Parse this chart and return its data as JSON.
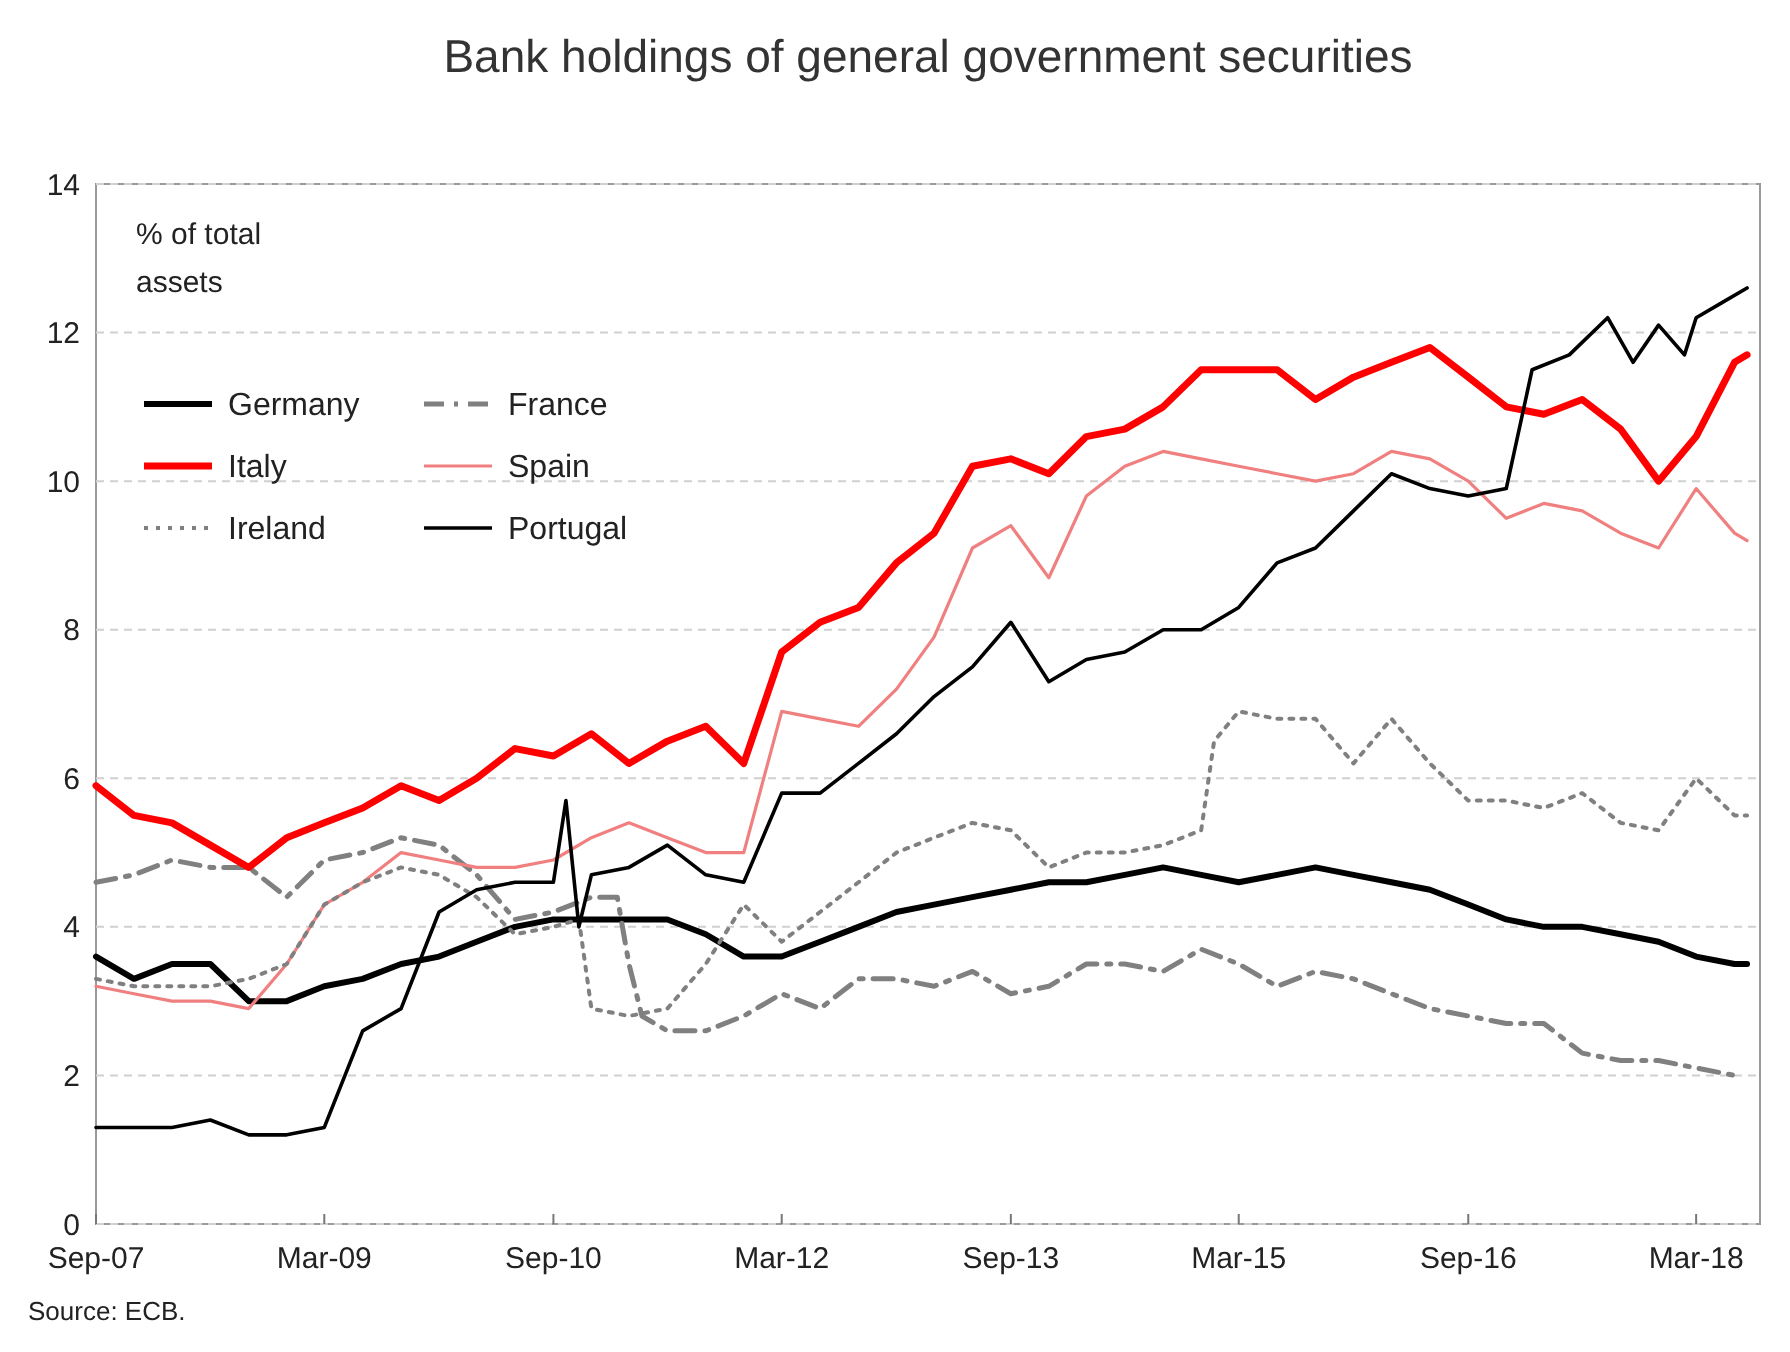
{
  "chart_data": {
    "type": "line",
    "title": "Bank holdings of general government securities",
    "ylabel": "% of total assets",
    "annotations": [
      "Source: ECB."
    ],
    "x": [
      "2007-09",
      "2007-12",
      "2008-03",
      "2008-06",
      "2008-09",
      "2008-12",
      "2009-03",
      "2009-06",
      "2009-09",
      "2009-12",
      "2010-03",
      "2010-06",
      "2010-09",
      "2010-12",
      "2011-03",
      "2011-06",
      "2011-09",
      "2011-12",
      "2012-03",
      "2012-06",
      "2012-09",
      "2012-12",
      "2013-03",
      "2013-06",
      "2013-09",
      "2013-12",
      "2014-03",
      "2014-06",
      "2014-09",
      "2014-12",
      "2015-03",
      "2015-06",
      "2015-09",
      "2015-12",
      "2016-03",
      "2016-06",
      "2016-09",
      "2016-12",
      "2017-03",
      "2017-06",
      "2017-09",
      "2017-12",
      "2018-03",
      "2018-06",
      "2018-07"
    ],
    "xlim": [
      "2007-09",
      "2018-08"
    ],
    "xticks": [
      {
        "value": "2007-09",
        "label": "Sep-07"
      },
      {
        "value": "2009-03",
        "label": "Mar-09"
      },
      {
        "value": "2010-09",
        "label": "Sep-10"
      },
      {
        "value": "2012-03",
        "label": "Mar-12"
      },
      {
        "value": "2013-09",
        "label": "Sep-13"
      },
      {
        "value": "2015-03",
        "label": "Mar-15"
      },
      {
        "value": "2016-09",
        "label": "Sep-16"
      },
      {
        "value": "2018-03",
        "label": "Mar-18"
      }
    ],
    "ylim": [
      0,
      14
    ],
    "yticks": [
      0,
      2,
      4,
      6,
      8,
      10,
      12,
      14
    ],
    "grid": "y",
    "legend": "top left",
    "series": [
      {
        "name": "Germany",
        "color": "#000000",
        "line_style": "solid",
        "values": [
          3.6,
          3.3,
          3.5,
          3.5,
          3.0,
          3.0,
          3.2,
          3.3,
          3.5,
          3.6,
          3.8,
          4.0,
          4.1,
          4.1,
          4.1,
          4.1,
          3.9,
          3.6,
          3.6,
          3.8,
          4.0,
          4.2,
          4.3,
          4.4,
          4.5,
          4.6,
          4.6,
          4.7,
          4.8,
          4.7,
          4.6,
          4.7,
          4.8,
          4.7,
          4.6,
          4.5,
          4.3,
          4.1,
          4.0,
          4.0,
          3.9,
          3.8,
          3.6,
          3.5,
          3.5
        ]
      },
      {
        "name": "France",
        "color": "#808080",
        "line_style": "dashed",
        "x": [
          "2007-09",
          "2007-12",
          "2008-03",
          "2008-06",
          "2008-09",
          "2008-12",
          "2009-03",
          "2009-06",
          "2009-09",
          "2009-12",
          "2010-03",
          "2010-06",
          "2010-09",
          "2010-12",
          "2011-02",
          "2011-03",
          "2011-04",
          "2011-06",
          "2011-09",
          "2011-12",
          "2012-03",
          "2012-06",
          "2012-09",
          "2012-12",
          "2013-03",
          "2013-06",
          "2013-09",
          "2013-12",
          "2014-03",
          "2014-06",
          "2014-09",
          "2014-12",
          "2015-03",
          "2015-06",
          "2015-09",
          "2015-12",
          "2016-03",
          "2016-06",
          "2016-09",
          "2016-12",
          "2017-03",
          "2017-06",
          "2017-09",
          "2017-12",
          "2018-03",
          "2018-06"
        ],
        "values": [
          4.6,
          4.7,
          4.9,
          4.8,
          4.8,
          4.4,
          4.9,
          5.0,
          5.2,
          5.1,
          4.7,
          4.1,
          4.2,
          4.4,
          4.4,
          3.5,
          2.8,
          2.6,
          2.6,
          2.8,
          3.1,
          2.9,
          3.3,
          3.3,
          3.2,
          3.4,
          3.1,
          3.2,
          3.5,
          3.5,
          3.4,
          3.7,
          3.5,
          3.2,
          3.4,
          3.3,
          3.1,
          2.9,
          2.8,
          2.7,
          2.7,
          2.3,
          2.2,
          2.2,
          2.1,
          2.0
        ]
      },
      {
        "name": "Italy",
        "color": "#ff0000",
        "line_style": "solid",
        "values": [
          5.9,
          5.5,
          5.4,
          5.1,
          4.8,
          5.2,
          5.4,
          5.6,
          5.9,
          5.7,
          6.0,
          6.4,
          6.3,
          6.6,
          6.2,
          6.5,
          6.7,
          6.2,
          7.7,
          8.1,
          8.3,
          8.9,
          9.3,
          10.2,
          10.3,
          10.1,
          10.6,
          10.7,
          11.0,
          11.5,
          11.5,
          11.5,
          11.1,
          11.4,
          11.6,
          11.8,
          11.4,
          11.0,
          10.9,
          11.1,
          10.7,
          10.0,
          10.6,
          11.6,
          11.7
        ]
      },
      {
        "name": "Spain",
        "color": "#f08080",
        "line_style": "solid",
        "values": [
          3.2,
          3.1,
          3.0,
          3.0,
          2.9,
          3.5,
          4.3,
          4.6,
          5.0,
          4.9,
          4.8,
          4.8,
          4.9,
          5.2,
          5.4,
          5.2,
          5.0,
          5.0,
          6.9,
          6.8,
          6.7,
          7.2,
          7.9,
          9.1,
          9.4,
          8.7,
          9.8,
          10.2,
          10.4,
          10.3,
          10.2,
          10.1,
          10.0,
          10.1,
          10.4,
          10.3,
          10.0,
          9.5,
          9.7,
          9.6,
          9.3,
          9.1,
          9.9,
          9.3,
          9.2
        ]
      },
      {
        "name": "Ireland",
        "color": "#808080",
        "line_style": "dotted",
        "x": [
          "2007-09",
          "2007-12",
          "2008-03",
          "2008-06",
          "2008-09",
          "2008-12",
          "2009-03",
          "2009-06",
          "2009-09",
          "2009-12",
          "2010-03",
          "2010-06",
          "2010-09",
          "2010-11",
          "2010-12",
          "2011-03",
          "2011-06",
          "2011-09",
          "2011-12",
          "2012-03",
          "2012-06",
          "2012-09",
          "2012-12",
          "2013-03",
          "2013-06",
          "2013-09",
          "2013-12",
          "2014-03",
          "2014-06",
          "2014-09",
          "2014-12",
          "2015-01",
          "2015-03",
          "2015-06",
          "2015-09",
          "2015-12",
          "2016-03",
          "2016-06",
          "2016-09",
          "2016-12",
          "2017-03",
          "2017-06",
          "2017-09",
          "2017-12",
          "2018-03",
          "2018-06",
          "2018-07"
        ],
        "values": [
          3.3,
          3.2,
          3.2,
          3.2,
          3.3,
          3.5,
          4.3,
          4.6,
          4.8,
          4.7,
          4.4,
          3.9,
          4.0,
          4.1,
          2.9,
          2.8,
          2.9,
          3.5,
          4.3,
          3.8,
          4.2,
          4.6,
          5.0,
          5.2,
          5.4,
          5.3,
          4.8,
          5.0,
          5.0,
          5.1,
          5.3,
          6.5,
          6.9,
          6.8,
          6.8,
          6.2,
          6.8,
          6.2,
          5.7,
          5.7,
          5.6,
          5.8,
          5.4,
          5.3,
          6.0,
          5.5,
          5.5
        ]
      },
      {
        "name": "Portugal",
        "color": "#000000",
        "line_style": "solid",
        "x": [
          "2007-09",
          "2007-12",
          "2008-03",
          "2008-06",
          "2008-09",
          "2008-12",
          "2009-03",
          "2009-06",
          "2009-09",
          "2009-12",
          "2010-03",
          "2010-06",
          "2010-09",
          "2010-10",
          "2010-11",
          "2010-12",
          "2011-03",
          "2011-06",
          "2011-09",
          "2011-12",
          "2012-03",
          "2012-06",
          "2012-09",
          "2012-12",
          "2013-03",
          "2013-06",
          "2013-09",
          "2013-12",
          "2014-03",
          "2014-06",
          "2014-09",
          "2014-12",
          "2015-03",
          "2015-06",
          "2015-09",
          "2015-12",
          "2016-03",
          "2016-06",
          "2016-09",
          "2016-12",
          "2017-02",
          "2017-05",
          "2017-08",
          "2017-10",
          "2017-12",
          "2018-02",
          "2018-03",
          "2018-05",
          "2018-07"
        ],
        "values": [
          1.3,
          1.3,
          1.3,
          1.4,
          1.2,
          1.2,
          1.3,
          2.6,
          2.9,
          4.2,
          4.5,
          4.6,
          4.6,
          5.7,
          4.0,
          4.7,
          4.8,
          5.1,
          4.7,
          4.6,
          5.8,
          5.8,
          6.2,
          6.6,
          7.1,
          7.5,
          8.1,
          7.3,
          7.6,
          7.7,
          8.0,
          8.0,
          8.3,
          8.9,
          9.1,
          9.6,
          10.1,
          9.9,
          9.8,
          9.9,
          11.5,
          11.7,
          12.2,
          11.6,
          12.1,
          11.7,
          12.2,
          12.4,
          12.6
        ]
      }
    ]
  }
}
